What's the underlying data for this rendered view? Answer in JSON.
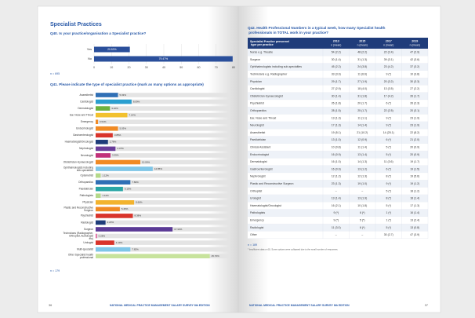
{
  "left_page": {
    "section_title": "Specialist Practices",
    "q40": {
      "question": "Q40. Is your practice/organisation a Specialist practice?",
      "rows": [
        {
          "label": "Yes",
          "value": 20.53,
          "value_label": "20.53%",
          "color": "#2a4f9b"
        },
        {
          "label": "No",
          "value": 79.47,
          "value_label": "79.47%",
          "color": "#2a4f9b"
        }
      ],
      "xlim": [
        0,
        80
      ],
      "xticks": [
        0,
        10,
        20,
        30,
        40,
        50,
        60,
        70,
        80
      ],
      "n": "n = 695"
    },
    "q41": {
      "question": "Q41. Please indicate the type of specialist practice (mark as many options as appropriate)",
      "xlim": [
        0,
        30
      ],
      "n": "n = 179",
      "rows": [
        {
          "label": "Anaesthetist",
          "value": 5.03,
          "value_label": "5.03%",
          "color": "#2f6fb5"
        },
        {
          "label": "Cardiologist",
          "value": 8.09,
          "value_label": "8.09%",
          "color": "#2a9fd0"
        },
        {
          "label": "Dermatologist",
          "value": 3.22,
          "value_label": "3.22%",
          "color": "#6db33f"
        },
        {
          "label": "Ear, Nose and Throat",
          "value": 7.14,
          "value_label": "7.14%",
          "color": "#f2c12e"
        },
        {
          "label": "Emergency",
          "value": 0.54,
          "value_label": "0.54%",
          "color": "#f08a24"
        },
        {
          "label": "Endocrinologist",
          "value": 5.03,
          "value_label": "5.03%",
          "color": "#f08a24"
        },
        {
          "label": "Gastroenterologist",
          "value": 3.85,
          "value_label": "3.85%",
          "color": "#d9342b"
        },
        {
          "label": "Haematologist/Oncologist",
          "value": 2.78,
          "value_label": "2.78%",
          "color": "#1f3c7a"
        },
        {
          "label": "Nephrologist",
          "value": 4.47,
          "value_label": "4.47%",
          "color": "#6a3d9a"
        },
        {
          "label": "Neurologist",
          "value": 3.35,
          "value_label": "3.35%",
          "color": "#c2307a"
        },
        {
          "label": "Obstetrician-Gynaecologist",
          "value": 10.06,
          "value_label": "10.06%",
          "color": "#f08a24"
        },
        {
          "label": "Ophthalmologists including sub-specialties",
          "value": 12.85,
          "value_label": "12.85%",
          "color": "#7fc6e8"
        },
        {
          "label": "Optometrist",
          "value": 1.12,
          "value_label": "1.12%",
          "color": "#b5d98a"
        },
        {
          "label": "Orthopaedics",
          "value": 7.82,
          "value_label": "7.82%",
          "color": "#2f6fb5"
        },
        {
          "label": "Paediatrician",
          "value": 6.15,
          "value_label": "6.15%",
          "color": "#2aa6a6"
        },
        {
          "label": "Pathologists",
          "value": 1.12,
          "value_label": "1.12%",
          "color": "#b5d98a"
        },
        {
          "label": "Physician",
          "value": 8.66,
          "value_label": "8.66%",
          "color": "#f2b32e"
        },
        {
          "label": "Plastic and Reconstructive Surgeon",
          "value": 5.45,
          "value_label": "5.45%",
          "color": "#f08a24"
        },
        {
          "label": "Psychiatrist",
          "value": 8.38,
          "value_label": "8.38%",
          "color": "#d9342b"
        },
        {
          "label": "Radiologist",
          "value": 2.23,
          "value_label": "2.23%",
          "color": "#1f3c7a"
        },
        {
          "label": "Surgeon",
          "value": 17.32,
          "value_label": "17.32%",
          "color": "#5b3a96"
        },
        {
          "label": "Technicians (Radiographer, Orthoptist, Audiologist etc)",
          "value": 0.28,
          "value_label": "0.28%",
          "color": "#e05a9a"
        },
        {
          "label": "Urologist",
          "value": 4.19,
          "value_label": "4.19%",
          "color": "#d9342b"
        },
        {
          "label": "Multi-specialist",
          "value": 7.82,
          "value_label": "7.82%",
          "color": "#7fc6e8"
        },
        {
          "label": "Other Specialist health professional",
          "value": 25.7,
          "value_label": "25.70%",
          "color": "#c7e39c"
        }
      ]
    },
    "page_number": "36",
    "footer": "NATIONAL MEDICAL PRACTICE MANAGEMENT SALARY SURVEY 8th EDITION"
  },
  "right_page": {
    "question": "Q42. Health Professional Numbers in a typical week, how many Specialist health professionals in TOTAL work in your practice?",
    "table": {
      "header": [
        "Specialist Practice personnel type per practice",
        "2013",
        "2015",
        "2017",
        "2019"
      ],
      "subheader": [
        "n (mean)",
        "n (mean)",
        "n (mean)",
        "n (mean)"
      ],
      "rows": [
        [
          "Nurse e.g. Theatre",
          "54 (2.2)",
          "48 (2.2)",
          "22 (2.4)",
          "47 (2.9)"
        ],
        [
          "Surgeon",
          "30 (1.4)",
          "31 (1.3)",
          "39 (3.1)",
          "42 (3.6)"
        ],
        [
          "Ophthalmologists including sub-specialties",
          "45 (2.2)",
          "24 (3.8)",
          "23 (4.2)",
          "37 (3.2)"
        ],
        [
          "Technicians e.g. Radiographer",
          "33 (3.9)",
          "11 (6.6)",
          "9 (*)",
          "10 (3.8)"
        ],
        [
          "Physician",
          "29 (1.7)",
          "27 (1.9)",
          "20 (3.2)",
          "30 (3.3)"
        ],
        [
          "Cardiologist",
          "27 (2.9)",
          "18 (4.0)",
          "13 (3.5)",
          "27 (2.2)"
        ],
        [
          "Obstetrician Gynaecologist",
          "30 (1.4)",
          "31 (1.8)",
          "17 (4.2)",
          "26 (1.7)"
        ],
        [
          "Psychiatrist",
          "26 (1.8)",
          "20 (1.7)",
          "6 (*)",
          "26 (2.3)"
        ],
        [
          "Orthopaedics",
          "28 (1.5)",
          "25 (1.7)",
          "22 (2.5)",
          "20 (3.1)"
        ],
        [
          "Ear, Nose and Throat",
          "13 (1.3)",
          "11 (1.1)",
          "9 (*)",
          "23 (1.9)"
        ],
        [
          "Neurologist",
          "17 (1.3)",
          "14 (1.4)",
          "9 (*)",
          "23 (1.9)"
        ],
        [
          "Anaesthetist",
          "19 (5.1)",
          "21 (10.2)",
          "14 (25.1)",
          "22 (8.2)"
        ],
        [
          "Paediatrician",
          "13 (1.0)",
          "12 (0.9)",
          "6 (*)",
          "21 (2.0)"
        ],
        [
          "Clinical Assistant",
          "10 (0.8)",
          "11 (1.4)",
          "5 (*)",
          "20 (0.9)"
        ],
        [
          "Endocrinologist",
          "16 (0.9)",
          "13 (1.4)",
          "5 (*)",
          "20 (0.9)"
        ],
        [
          "Dermatologist",
          "16 (1.0)",
          "14 (1.3)",
          "11 (3.6)",
          "19 (1.7)"
        ],
        [
          "Gastroenterologist",
          "16 (0.9)",
          "13 (1.2)",
          "6 (*)",
          "19 (1.5)"
        ],
        [
          "Nephrologist",
          "12 (1.2)",
          "12 (1.3)",
          "8 (*)",
          "19 (5.6)"
        ],
        [
          "Plastic and Reconstructive Surgeon",
          "23 (1.3)",
          "19 (1.0)",
          "9 (*)",
          "19 (1.2)"
        ],
        [
          "Orthoptist",
          "–",
          "–",
          "5 (*)",
          "18 (1.2)"
        ],
        [
          "Urologist",
          "13 (1.4)",
          "13 (1.9)",
          "8 (*)",
          "18 (1.4)"
        ],
        [
          "Haematologist/Oncologist",
          "16 (2.1)",
          "10 (1.8)",
          "5 (*)",
          "17 (1.3)"
        ],
        [
          "Pathologists",
          "9 (*)",
          "6 (*)",
          "1 (*)",
          "16 (1.4)"
        ],
        [
          "Emergency",
          "9 (*)",
          "5 (*)",
          "1 (*)",
          "13 (2.4)"
        ],
        [
          "Radiologist",
          "11 (3.0)",
          "6 (*)",
          "5 (*)",
          "13 (0.8)"
        ],
        [
          "Other",
          "–",
          "–",
          "30 (2.7)",
          "47 (3.9)"
        ]
      ]
    },
    "n": "n = 189",
    "footnote": "* Insufficient data or (0). Some options were collapsed due to the small number of responses.",
    "page_number": "37",
    "footer": "NATIONAL MEDICAL PRACTICE MANAGEMENT SALARY SURVEY 8th EDITION"
  }
}
